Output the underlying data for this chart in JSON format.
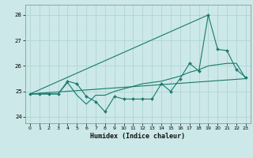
{
  "xlabel": "Humidex (Indice chaleur)",
  "bg_color": "#cce8e8",
  "grid_color": "#b0d4d4",
  "line_color": "#1a7a6e",
  "xlim": [
    -0.5,
    23.5
  ],
  "ylim": [
    23.75,
    28.4
  ],
  "yticks": [
    24,
    25,
    26,
    27,
    28
  ],
  "xticks": [
    0,
    1,
    2,
    3,
    4,
    5,
    6,
    7,
    8,
    9,
    10,
    11,
    12,
    13,
    14,
    15,
    16,
    17,
    18,
    19,
    20,
    21,
    22,
    23
  ],
  "line1_x": [
    0,
    1,
    2,
    3,
    4,
    5,
    6,
    7,
    8,
    9,
    10,
    11,
    12,
    13,
    14,
    15,
    16,
    17,
    18,
    19,
    20,
    21,
    22,
    23
  ],
  "line1_y": [
    24.9,
    24.9,
    24.9,
    24.9,
    25.4,
    25.3,
    24.8,
    24.6,
    24.2,
    24.8,
    24.7,
    24.7,
    24.7,
    24.7,
    25.3,
    25.0,
    25.5,
    26.1,
    25.8,
    28.0,
    26.65,
    26.6,
    25.85,
    25.55
  ],
  "line2_x": [
    0,
    1,
    2,
    3,
    4,
    5,
    6,
    7,
    8,
    9,
    10,
    11,
    12,
    13,
    14,
    15,
    16,
    17,
    18,
    19,
    20,
    21,
    22,
    23
  ],
  "line2_y": [
    24.9,
    24.9,
    24.9,
    24.9,
    25.35,
    24.85,
    24.5,
    24.85,
    24.85,
    25.0,
    25.1,
    25.2,
    25.3,
    25.35,
    25.4,
    25.5,
    25.6,
    25.75,
    25.85,
    26.0,
    26.05,
    26.1,
    26.1,
    25.5
  ],
  "line3_x": [
    0,
    23
  ],
  "line3_y": [
    24.9,
    25.5
  ],
  "line4_x": [
    0,
    19
  ],
  "line4_y": [
    24.9,
    28.0
  ]
}
